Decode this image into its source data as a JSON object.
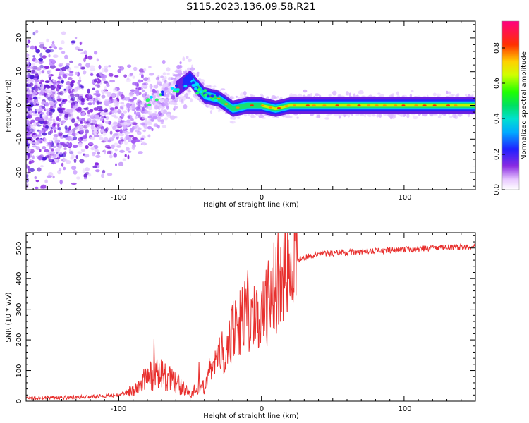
{
  "title": "S115.2023.136.09.58.R21",
  "chart_data": [
    {
      "type": "heatmap",
      "xlabel": "Height of straight line (km)",
      "ylabel": "Frequency (Hz)",
      "xlim": [
        -165,
        150
      ],
      "ylim": [
        -25,
        25
      ],
      "x_tick_labels": [
        "-100",
        "0",
        "100"
      ],
      "y_tick_labels": [
        "-20",
        "-10",
        "0",
        "10",
        "20"
      ],
      "colorbar": {
        "label": "Normalized spectral amplitude",
        "range": [
          0,
          0.95
        ],
        "tick_labels": [
          "0.0",
          "0.2",
          "0.4",
          "0.6",
          "0.8"
        ],
        "colormap": "white-purple-blue-cyan-green-yellow-red-magenta"
      },
      "ridge_frequency_hz": [
        {
          "x": -90,
          "y": -2
        },
        {
          "x": -75,
          "y": 2
        },
        {
          "x": -62,
          "y": 4
        },
        {
          "x": -50,
          "y": 8
        },
        {
          "x": -40,
          "y": 3
        },
        {
          "x": -30,
          "y": 2
        },
        {
          "x": -20,
          "y": -1
        },
        {
          "x": -10,
          "y": 0
        },
        {
          "x": 0,
          "y": 0
        },
        {
          "x": 10,
          "y": -1
        },
        {
          "x": 20,
          "y": 0
        },
        {
          "x": 150,
          "y": 0
        }
      ]
    },
    {
      "type": "line",
      "xlabel": "Height of straight line (km)",
      "ylabel": "SNR (10 * v/v)",
      "xlim": [
        -165,
        150
      ],
      "ylim": [
        0,
        550
      ],
      "x_tick_labels": [
        "-100",
        "0",
        "100"
      ],
      "y_tick_labels": [
        "0",
        "100",
        "200",
        "300",
        "400",
        "500"
      ],
      "color": "#e8302e",
      "series": [
        {
          "x": [
            -165,
            -140,
            -120,
            -100,
            -90,
            -80,
            -70,
            -60,
            -50,
            -40,
            -35,
            -30,
            -25,
            -20,
            -15,
            -10,
            -5,
            0,
            5,
            10,
            15,
            20,
            25,
            30,
            40,
            60,
            80,
            100,
            120,
            150
          ],
          "y": [
            10,
            12,
            15,
            20,
            35,
            80,
            90,
            60,
            25,
            55,
            120,
            170,
            150,
            230,
            260,
            300,
            260,
            280,
            320,
            390,
            410,
            440,
            460,
            470,
            480,
            485,
            490,
            495,
            500,
            505
          ]
        }
      ]
    }
  ]
}
